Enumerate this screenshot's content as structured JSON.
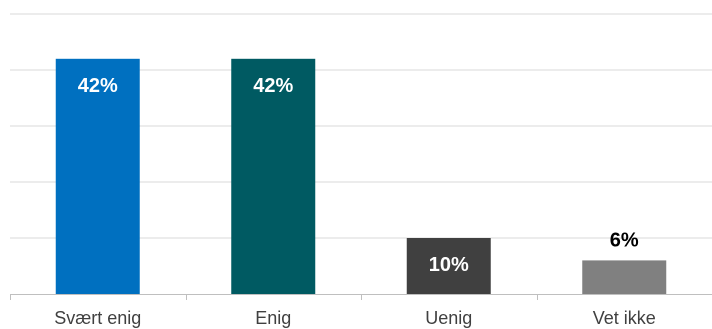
{
  "chart_data": {
    "type": "bar",
    "title": "",
    "xlabel": "",
    "ylabel": "",
    "categories": [
      "Svært enig",
      "Enig",
      "Uenig",
      "Vet ikke"
    ],
    "values": [
      42,
      42,
      10,
      6
    ],
    "value_labels": [
      "42%",
      "42%",
      "10%",
      "6%"
    ],
    "colors": [
      "#0070C0",
      "#005A62",
      "#404040",
      "#808080"
    ],
    "label_colors": [
      "#ffffff",
      "#ffffff",
      "#ffffff",
      "#000000"
    ],
    "ylim": [
      0,
      50
    ],
    "gridlines": [
      0,
      10,
      20,
      30,
      40,
      50
    ],
    "grid": true,
    "legend": "none"
  }
}
